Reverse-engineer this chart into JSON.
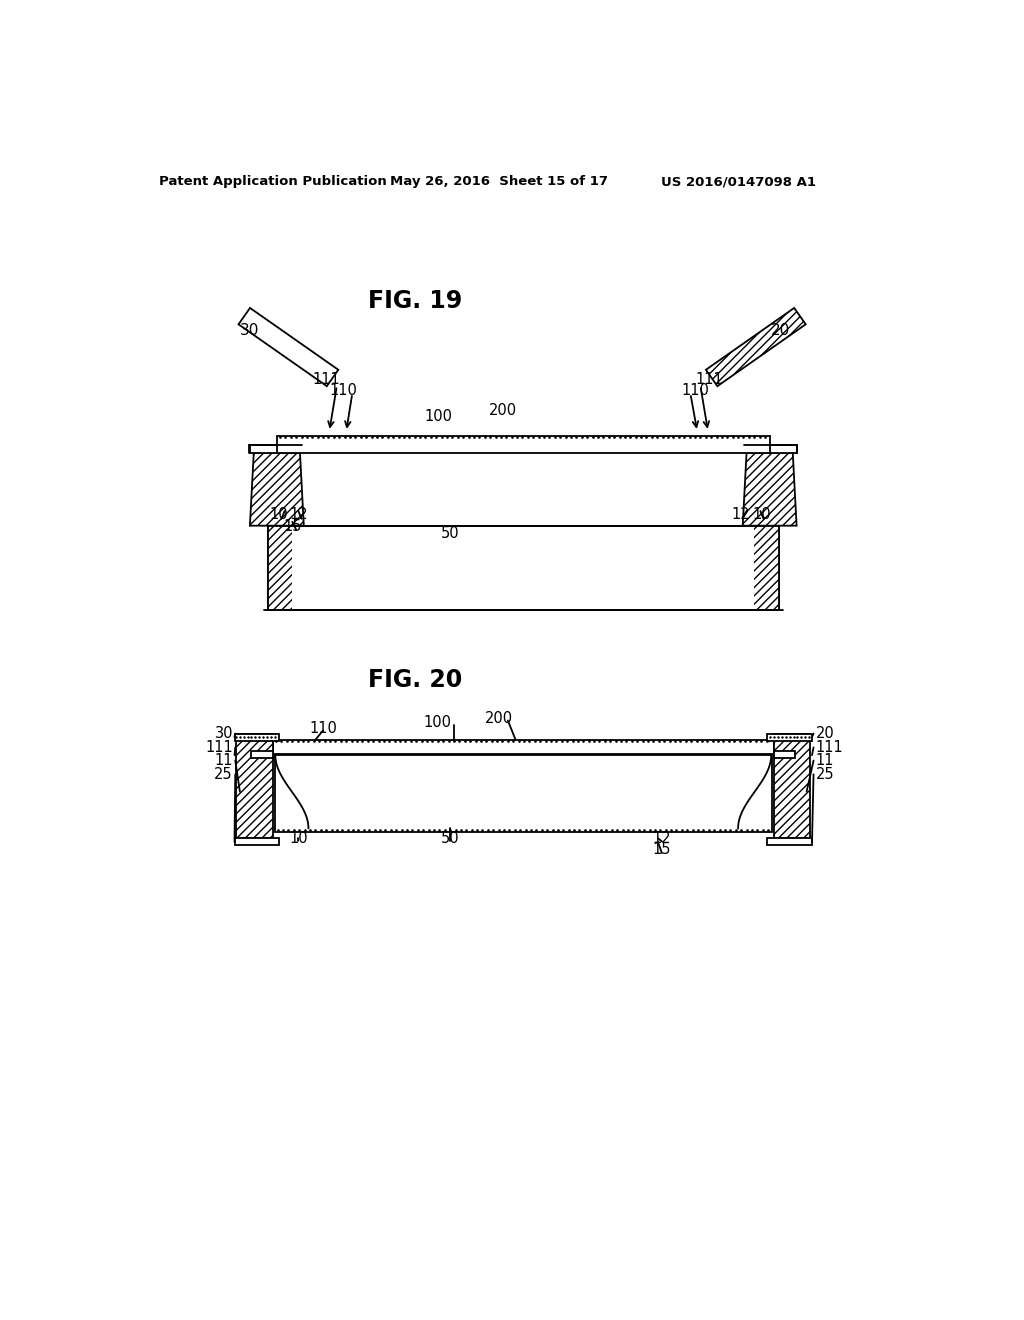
{
  "header_left": "Patent Application Publication",
  "header_mid": "May 26, 2016  Sheet 15 of 17",
  "header_right": "US 2016/0147098 A1",
  "fig19_title": "FIG. 19",
  "fig20_title": "FIG. 20",
  "bg_color": "#ffffff",
  "line_color": "#000000"
}
